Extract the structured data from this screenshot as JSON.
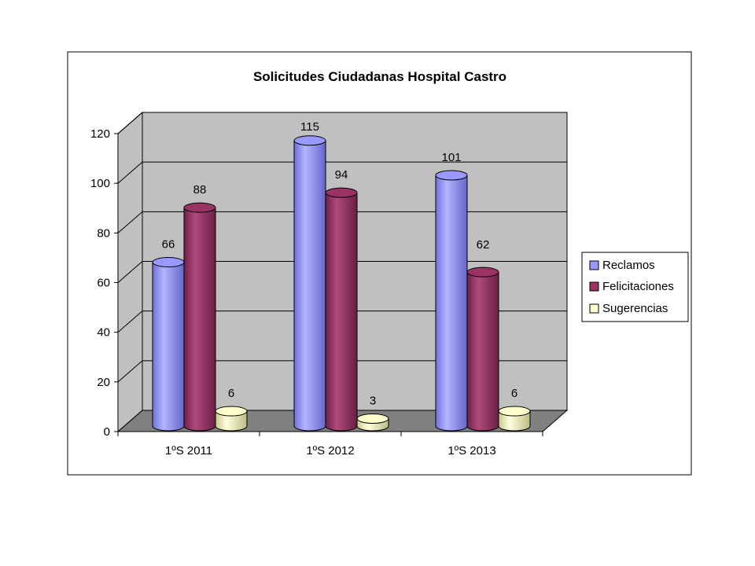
{
  "chart_data": {
    "type": "bar",
    "title": "Solicitudes Ciudadanas Hospital Castro",
    "xlabel": "",
    "ylabel": "",
    "categories": [
      "1ºS 2011",
      "1ºS 2012",
      "1ºS 2013"
    ],
    "series": [
      {
        "name": "Reclamos",
        "values": [
          66,
          115,
          101
        ],
        "color": "#9999ff"
      },
      {
        "name": "Felicitaciones",
        "values": [
          88,
          94,
          62
        ],
        "color": "#993366"
      },
      {
        "name": "Sugerencias",
        "values": [
          6,
          3,
          6
        ],
        "color": "#ffffcc"
      }
    ],
    "ylim": [
      0,
      120
    ],
    "yticks": [
      "0",
      "20",
      "40",
      "60",
      "80",
      "100",
      "120"
    ],
    "grid": true,
    "style": "3d-cylinder",
    "legend_position": "right",
    "colors": {
      "wall": "#c0c0c0",
      "floor": "#808080",
      "frame": "#000000"
    }
  }
}
